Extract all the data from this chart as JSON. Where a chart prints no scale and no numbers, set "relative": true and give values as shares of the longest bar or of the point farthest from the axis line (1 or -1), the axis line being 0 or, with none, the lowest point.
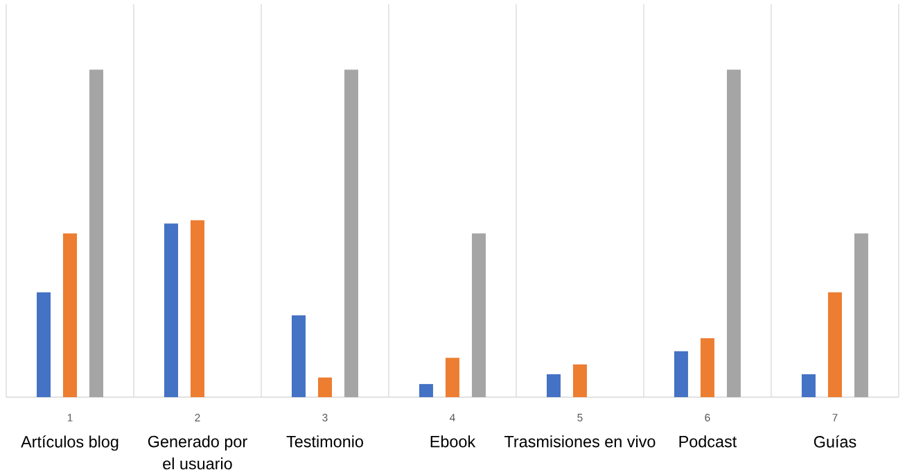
{
  "chart_data": {
    "type": "bar",
    "relative": true,
    "grid": "x",
    "categories": [
      "Artículos blog",
      "Generado por el usuario",
      "Testimonio",
      "Ebook",
      "Trasmisiones en vivo",
      "Podcast",
      "Guías"
    ],
    "series": [
      {
        "color": "#4472c4",
        "values": [
          0.32,
          0.53,
          0.25,
          0.04,
          0.07,
          0.14,
          0.07
        ]
      },
      {
        "color": "#ed7d31",
        "values": [
          0.5,
          0.54,
          0.06,
          0.12,
          0.1,
          0.18,
          0.32
        ]
      },
      {
        "color": "#a5a5a5",
        "values": [
          1,
          null,
          1,
          0.5,
          null,
          1,
          0.5
        ]
      }
    ],
    "annotations": [
      "1",
      "2",
      "3",
      "4",
      "5",
      "6",
      "7"
    ]
  }
}
